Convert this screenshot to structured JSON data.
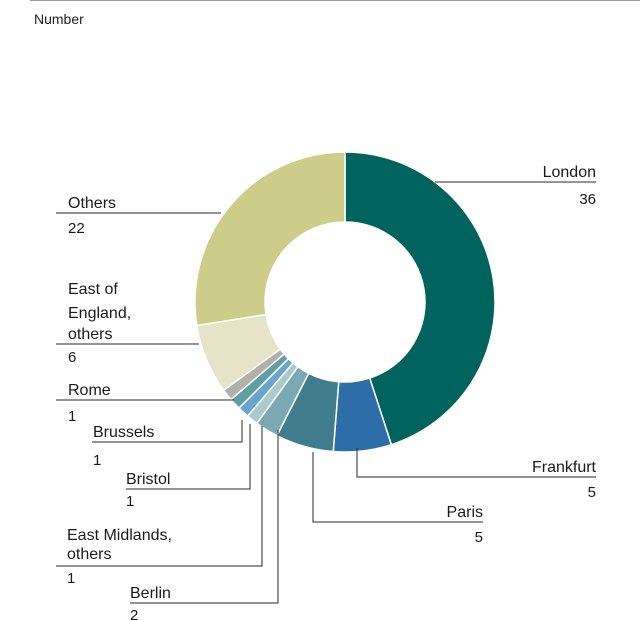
{
  "unit": "Number",
  "chart_data": {
    "type": "pie",
    "variant": "donut",
    "title": "",
    "unit": "Number",
    "slices": [
      {
        "name": "London",
        "lines": [
          "London"
        ],
        "value": 36,
        "color": "#00635d"
      },
      {
        "name": "Frankfurt",
        "lines": [
          "Frankfurt"
        ],
        "value": 5,
        "color": "#2d6ea8"
      },
      {
        "name": "Paris",
        "lines": [
          "Paris"
        ],
        "value": 5,
        "color": "#3f7d8c"
      },
      {
        "name": "Berlin",
        "lines": [
          "Berlin"
        ],
        "value": 2,
        "color": "#7aa9b4"
      },
      {
        "name": "East Midlands, others",
        "lines": [
          "East Midlands,",
          "others"
        ],
        "value": 1,
        "color": "#a9c9cd"
      },
      {
        "name": "Bristol",
        "lines": [
          "Bristol"
        ],
        "value": 1,
        "color": "#6aa4cf"
      },
      {
        "name": "Brussels",
        "lines": [
          "Brussels"
        ],
        "value": 1,
        "color": "#5f9fa4"
      },
      {
        "name": "Rome",
        "lines": [
          "Rome"
        ],
        "value": 1,
        "color": "#b1b1aa"
      },
      {
        "name": "East of England, others",
        "lines": [
          "East of",
          "England,",
          "others"
        ],
        "value": 6,
        "color": "#e6e3c8"
      },
      {
        "name": "Others",
        "lines": [
          "Others"
        ],
        "value": 22,
        "color": "#cdcc88"
      }
    ]
  }
}
